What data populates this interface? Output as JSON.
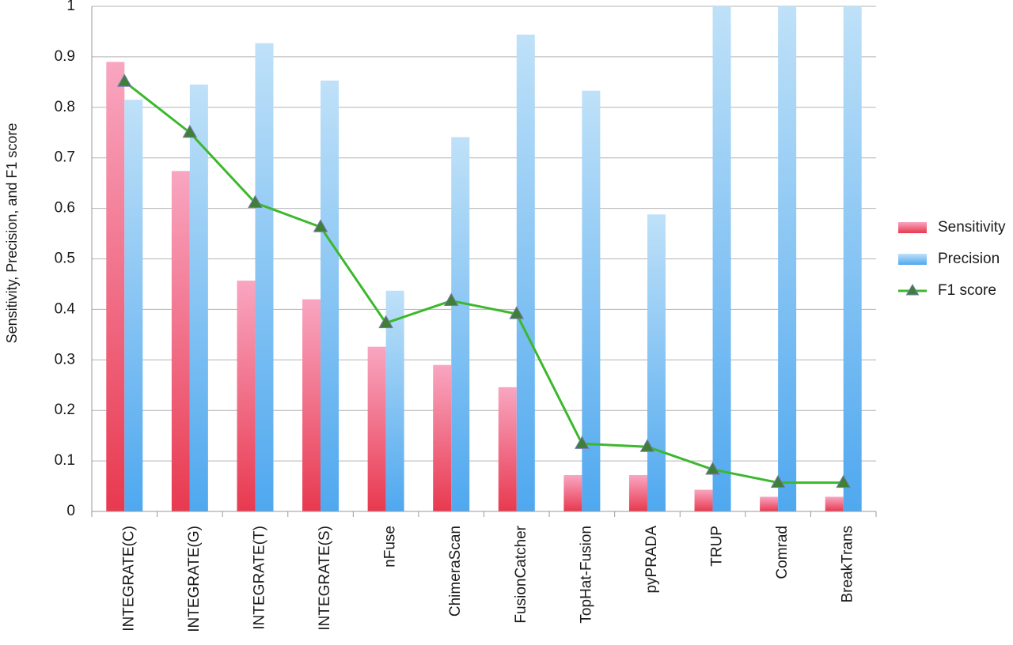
{
  "chart_data": {
    "type": "bar",
    "title": "",
    "xlabel": "",
    "ylabel": "Sensitivity, Precision, and F1 score",
    "ylim": [
      0,
      1
    ],
    "yticks": [
      "0",
      "0.1",
      "0.2",
      "0.3",
      "0.4",
      "0.5",
      "0.6",
      "0.7",
      "0.8",
      "0.9",
      "1"
    ],
    "grid": true,
    "legend_position": "right",
    "categories": [
      "INTEGRATE(C)",
      "INTEGRATE(G)",
      "INTEGRATE(T)",
      "INTEGRATE(S)",
      "nFuse",
      "ChimeraScan",
      "FusionCatcher",
      "TopHat-Fusion",
      "pyPRADA",
      "TRUP",
      "Comrad",
      "BreakTrans"
    ],
    "series": [
      {
        "name": "Sensitivity",
        "kind": "bar",
        "color": "#f0607a",
        "values": [
          0.89,
          0.674,
          0.457,
          0.42,
          0.326,
          0.29,
          0.246,
          0.072,
          0.072,
          0.043,
          0.029,
          0.029
        ]
      },
      {
        "name": "Precision",
        "kind": "bar",
        "color": "#6fb8f0",
        "values": [
          0.815,
          0.845,
          0.927,
          0.853,
          0.437,
          0.741,
          0.944,
          0.833,
          0.588,
          1.0,
          1.0,
          1.0
        ]
      },
      {
        "name": "F1 score",
        "kind": "line",
        "color": "#3cb82c",
        "marker_color": "#3f7f3a",
        "values": [
          0.851,
          0.75,
          0.611,
          0.563,
          0.373,
          0.417,
          0.391,
          0.134,
          0.128,
          0.083,
          0.057,
          0.057
        ]
      }
    ]
  }
}
